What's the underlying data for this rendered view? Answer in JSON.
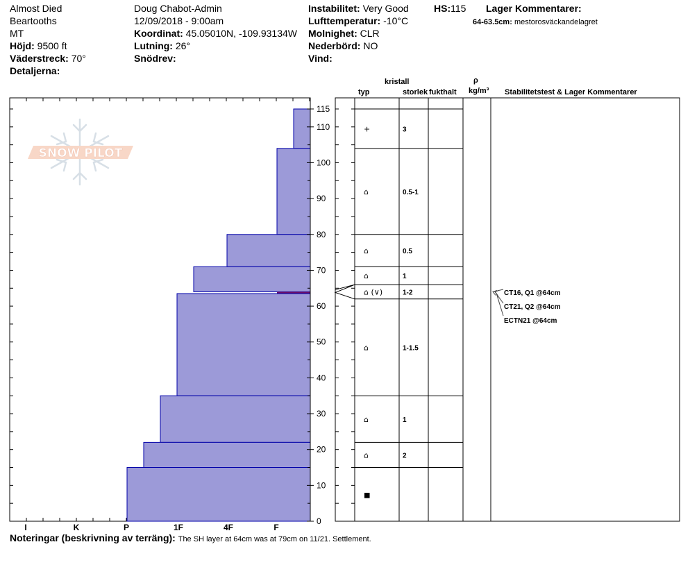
{
  "header": {
    "col1": {
      "name": "Almost Died",
      "range": "Beartooths",
      "state": "MT",
      "elevation_label": "Höjd:",
      "elevation": "9500 ft",
      "aspect_label": "Väderstreck:",
      "aspect": "70°",
      "details_label": "Detaljerna:"
    },
    "col2": {
      "observer": "Doug Chabot-Admin",
      "datetime": "12/09/2018 - 9:00am",
      "coord_label": "Koordinat:",
      "coord": "45.05010N, -109.93134W",
      "slope_label": "Lutning:",
      "slope": "26°",
      "wind_loading_label": "Snödrev:"
    },
    "col3": {
      "stability_label": "Instabilitet:",
      "stability": "Very Good",
      "air_temp_label": "Lufttemperatur:",
      "air_temp": "-10°C",
      "sky_label": "Molnighet:",
      "sky": "CLR",
      "precip_label": "Nederbörd:",
      "precip": "NO",
      "wind_label": "Vind:"
    },
    "hs_label": "HS:",
    "hs": "115",
    "layer_comments_label": "Lager Kommentarer:",
    "layer_comment_range": "64-63.5cm:",
    "layer_comment_text": "mestorosväckandelagret"
  },
  "logo": {
    "text": "SNOW PILOT",
    "icon": "snowflake-icon"
  },
  "columns": {
    "crystal": "kristall",
    "type": "typ",
    "size": "storlek",
    "moisture": "fukthalt",
    "rho": "ρ",
    "density_unit": "kg/m³",
    "stability_header": "Stabilitetstest & Lager Kommentarer"
  },
  "chart_data": {
    "type": "bar",
    "orientation": "horizontal",
    "y_axis": {
      "label": "",
      "range": [
        0,
        118
      ],
      "ticks": [
        0,
        10,
        20,
        30,
        40,
        50,
        60,
        70,
        80,
        90,
        100,
        110,
        115
      ]
    },
    "x_axis": {
      "label": "",
      "categories": [
        "I",
        "K",
        "P",
        "1F",
        "4F",
        "F"
      ]
    },
    "hardness_layers": [
      {
        "top": 115,
        "bottom": 104,
        "hardness": "F-"
      },
      {
        "top": 104,
        "bottom": 80,
        "hardness": "F+"
      },
      {
        "top": 80,
        "bottom": 71,
        "hardness": "4F+"
      },
      {
        "top": 71,
        "bottom": 64,
        "hardness": "4F-"
      },
      {
        "top": 64,
        "bottom": 63.5,
        "hardness": "F+",
        "highlight": true
      },
      {
        "top": 63.5,
        "bottom": 35,
        "hardness": "1F-"
      },
      {
        "top": 35,
        "bottom": 22,
        "hardness": "P+"
      },
      {
        "top": 22,
        "bottom": 15,
        "hardness": "P"
      },
      {
        "top": 15,
        "bottom": 0,
        "hardness": "P-"
      }
    ],
    "crystal_layers": [
      {
        "top": 115,
        "bottom": 104,
        "type": "+",
        "size": "3"
      },
      {
        "top": 104,
        "bottom": 80,
        "type": "⌂",
        "size": "0.5-1"
      },
      {
        "top": 80,
        "bottom": 71,
        "type": "⌂",
        "size": "0.5"
      },
      {
        "top": 71,
        "bottom": 66,
        "type": "⌂",
        "size": "1"
      },
      {
        "top": 66,
        "bottom": 62,
        "type": "⌂ (∨)",
        "size": "1-2"
      },
      {
        "top": 62,
        "bottom": 35,
        "type": "⌂",
        "size": "1-1.5"
      },
      {
        "top": 35,
        "bottom": 22,
        "type": "⌂",
        "size": "1"
      },
      {
        "top": 22,
        "bottom": 15,
        "type": "⌂",
        "size": "2"
      },
      {
        "top": 15,
        "bottom": 0,
        "type": "■",
        "size": ""
      }
    ],
    "stability_tests": [
      "CT16, Q1 @64cm",
      "CT21, Q2 @64cm",
      "ECTN21 @64cm"
    ],
    "colors": {
      "fill": "#9c9ad8",
      "stroke": "#0000a8",
      "highlight": "#6a0a6a"
    }
  },
  "notes": {
    "label": "Noteringar (beskrivning av terräng):",
    "text": "The SH layer at 64cm was at 79cm on 11/21. Settlement."
  }
}
